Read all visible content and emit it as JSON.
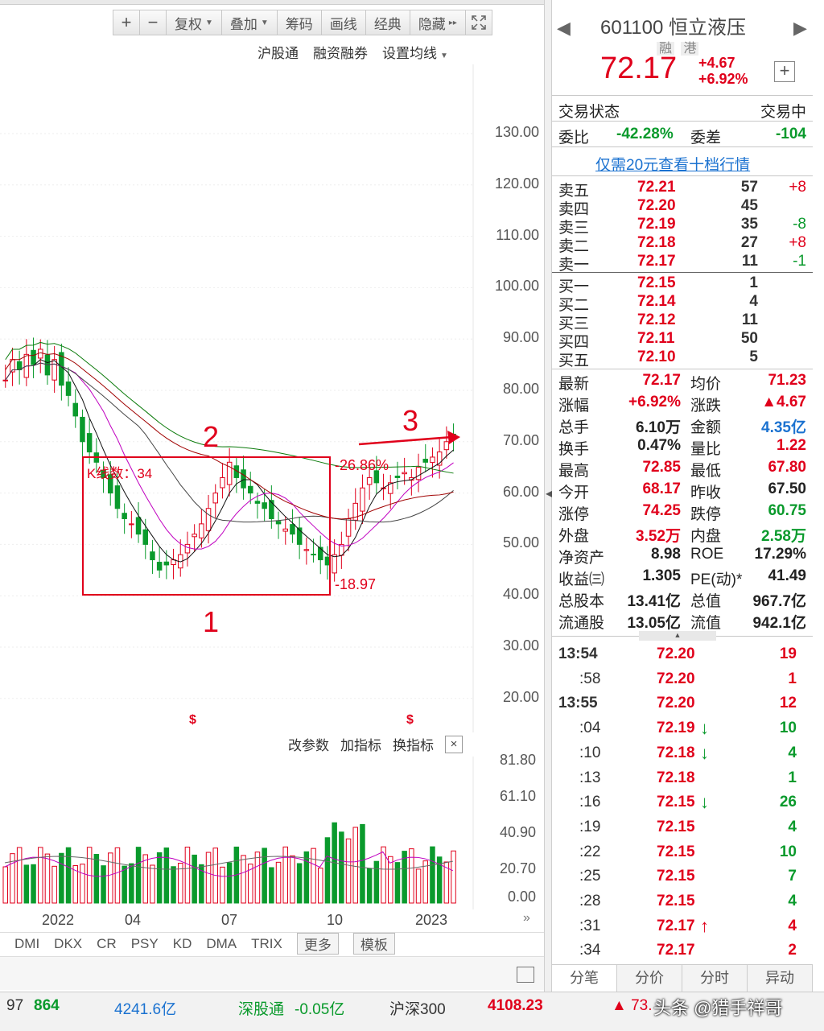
{
  "toolbar": {
    "zoom_in": "+",
    "zoom_out": "−",
    "fuquan": "复权",
    "diejia": "叠加",
    "chouma": "筹码",
    "huaxian": "画线",
    "jingdian": "经典",
    "yincang": "隐藏",
    "fullscreen_icon": "fullscreen-icon"
  },
  "subtoolbar": {
    "hgt": "沪股通",
    "rzrq": "融资融券",
    "ma_setting": "设置均线"
  },
  "price_axis": [
    "130.00",
    "120.00",
    "110.00",
    "100.00",
    "90.00",
    "80.00",
    "70.00",
    "60.00",
    "50.00",
    "40.00",
    "30.00",
    "20.00"
  ],
  "annotations": {
    "kline_count": "K线数：34",
    "pct_change": "-26.86%",
    "low_price": "-18.97",
    "label1": "1",
    "label2": "2",
    "label3": "3",
    "dividend_mark": "$"
  },
  "indicator_bar": {
    "modify": "改参数",
    "add": "加指标",
    "switch": "换指标",
    "close": "×"
  },
  "vol_axis": [
    "81.80",
    "61.10",
    "40.90",
    "20.70",
    "0.00"
  ],
  "x_axis": [
    "2022",
    "04",
    "07",
    "10",
    "2023"
  ],
  "ind_tabs": [
    "DMI",
    "DKX",
    "CR",
    "PSY",
    "KD",
    "DMA",
    "TRIX",
    "更多",
    "模板"
  ],
  "stock": {
    "code": "601100",
    "name": "恒立液压",
    "tag1": "融",
    "tag2": "港",
    "price": "72.17",
    "change": "+4.67",
    "change_pct": "+6.92%",
    "colors": {
      "up": "#e0001b",
      "down": "#0a9a2c",
      "link": "#1b72d0"
    }
  },
  "trade": {
    "status_label": "交易状态",
    "status_value": "交易中",
    "weibi_label": "委比",
    "weibi_value": "-42.28%",
    "weicha_label": "委差",
    "weicha_value": "-104",
    "promo": "仅需20元查看十档行情"
  },
  "asks": [
    {
      "label": "卖五",
      "price": "72.21",
      "vol": "57",
      "chg": "+8"
    },
    {
      "label": "卖四",
      "price": "72.20",
      "vol": "45",
      "chg": ""
    },
    {
      "label": "卖三",
      "price": "72.19",
      "vol": "35",
      "chg": "-8"
    },
    {
      "label": "卖二",
      "price": "72.18",
      "vol": "27",
      "chg": "+8"
    },
    {
      "label": "卖一",
      "price": "72.17",
      "vol": "11",
      "chg": "-1"
    }
  ],
  "bids": [
    {
      "label": "买一",
      "price": "72.15",
      "vol": "1"
    },
    {
      "label": "买二",
      "price": "72.14",
      "vol": "4"
    },
    {
      "label": "买三",
      "price": "72.12",
      "vol": "11"
    },
    {
      "label": "买四",
      "price": "72.11",
      "vol": "50"
    },
    {
      "label": "买五",
      "price": "72.10",
      "vol": "5"
    }
  ],
  "quote": [
    {
      "l1": "最新",
      "v1": "72.17",
      "c1": "red",
      "l2": "均价",
      "v2": "71.23",
      "c2": "red"
    },
    {
      "l1": "涨幅",
      "v1": "+6.92%",
      "c1": "red",
      "l2": "涨跌",
      "v2": "▲4.67",
      "c2": "red"
    },
    {
      "l1": "总手",
      "v1": "6.10万",
      "c1": "",
      "l2": "金额",
      "v2": "4.35亿",
      "c2": "blue"
    },
    {
      "l1": "换手",
      "v1": "0.47%",
      "c1": "",
      "l2": "量比",
      "v2": "1.22",
      "c2": "red"
    },
    {
      "l1": "最高",
      "v1": "72.85",
      "c1": "red",
      "l2": "最低",
      "v2": "67.80",
      "c2": "red"
    },
    {
      "l1": "今开",
      "v1": "68.17",
      "c1": "red",
      "l2": "昨收",
      "v2": "67.50",
      "c2": ""
    },
    {
      "l1": "涨停",
      "v1": "74.25",
      "c1": "red",
      "l2": "跌停",
      "v2": "60.75",
      "c2": "green"
    },
    {
      "l1": "外盘",
      "v1": "3.52万",
      "c1": "red",
      "l2": "内盘",
      "v2": "2.58万",
      "c2": "green"
    },
    {
      "l1": "净资产",
      "v1": "8.98",
      "c1": "",
      "l2": "ROE",
      "v2": "17.29%",
      "c2": ""
    },
    {
      "l1": "收益㈢",
      "v1": "1.305",
      "c1": "",
      "l2": "PE(动)*",
      "v2": "41.49",
      "c2": ""
    },
    {
      "l1": "总股本",
      "v1": "13.41亿",
      "c1": "",
      "l2": "总值",
      "v2": "967.7亿",
      "c2": ""
    },
    {
      "l1": "流通股",
      "v1": "13.05亿",
      "c1": "",
      "l2": "流值",
      "v2": "942.1亿",
      "c2": ""
    }
  ],
  "ticks": [
    {
      "time": "13:54",
      "price": "72.20",
      "arrow": "",
      "vol": "19",
      "vc": "red"
    },
    {
      "time": ":58",
      "price": "72.20",
      "arrow": "",
      "vol": "1",
      "vc": "red"
    },
    {
      "time": "13:55",
      "price": "72.20",
      "arrow": "",
      "vol": "12",
      "vc": "red"
    },
    {
      "time": ":04",
      "price": "72.19",
      "arrow": "↓",
      "vol": "10",
      "vc": "green"
    },
    {
      "time": ":10",
      "price": "72.18",
      "arrow": "↓",
      "vol": "4",
      "vc": "green"
    },
    {
      "time": ":13",
      "price": "72.18",
      "arrow": "",
      "vol": "1",
      "vc": "green"
    },
    {
      "time": ":16",
      "price": "72.15",
      "arrow": "↓",
      "vol": "26",
      "vc": "green"
    },
    {
      "time": ":19",
      "price": "72.15",
      "arrow": "",
      "vol": "4",
      "vc": "green"
    },
    {
      "time": ":22",
      "price": "72.15",
      "arrow": "",
      "vol": "10",
      "vc": "green"
    },
    {
      "time": ":25",
      "price": "72.15",
      "arrow": "",
      "vol": "7",
      "vc": "green"
    },
    {
      "time": ":28",
      "price": "72.15",
      "arrow": "",
      "vol": "4",
      "vc": "green"
    },
    {
      "time": ":31",
      "price": "72.17",
      "arrow": "↑",
      "vol": "4",
      "vc": "red"
    },
    {
      "time": ":34",
      "price": "72.17",
      "arrow": "",
      "vol": "2",
      "vc": "red"
    }
  ],
  "rp_tabs": [
    "分笔",
    "分价",
    "分时",
    "异动"
  ],
  "status_bar": {
    "a": "97",
    "b": "864",
    "c": "4241.6亿",
    "d": "深股通",
    "e": "-0.05亿",
    "f": "沪深300",
    "g": "4108.23",
    "h": "▲ 73.",
    "watermark": "头条 @猎手祥哥"
  }
}
